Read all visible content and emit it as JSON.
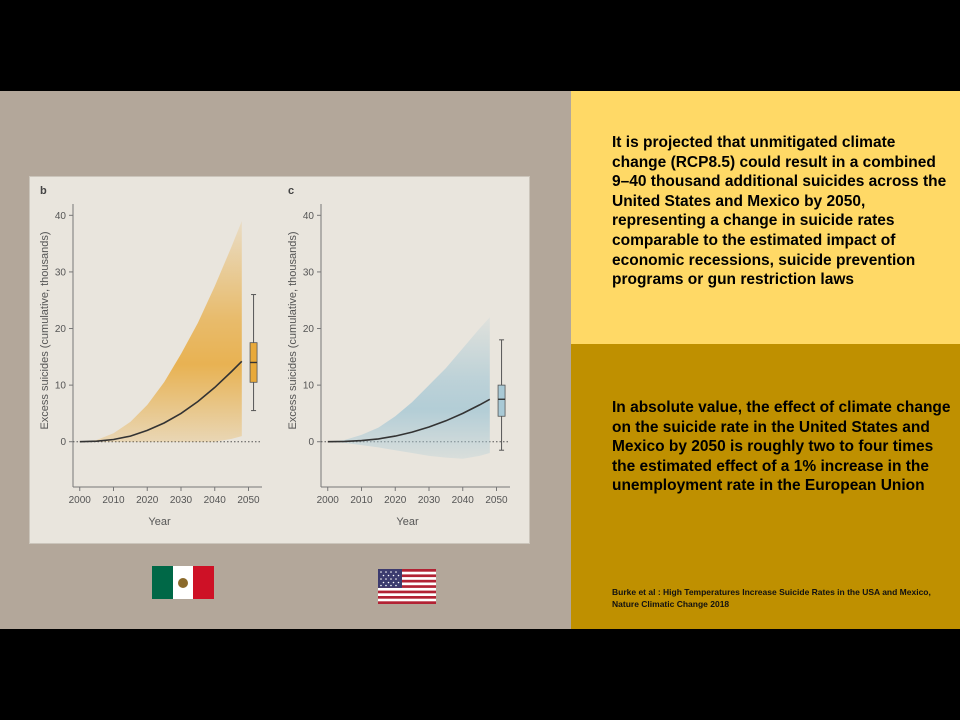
{
  "slide": {
    "text_top": " It is projected that unmitigated climate change (RCP8.5) could result in a combined 9–40 thousand additional suicides across the United States and Mexico by 2050,\nrepresenting a change in suicide rates comparable to the estimated impact of economic recessions, suicide prevention programs or gun restriction laws",
    "text_mid": "In absolute value, the effect of climate change on the suicide rate in the United States and Mexico by 2050 is roughly two to four times the estimated effect of a 1% increase in the unemployment rate in the European Union",
    "citation": "Burke et al : High Temperatures  Increase Suicide Rates in the USA and Mexico, Nature Climatic Change 2018",
    "colors": {
      "background_left": "#b3a79a",
      "panel_yellow": "#ffd966",
      "panel_gold": "#bf9000",
      "figure_bg": "#e9e5dd"
    },
    "flags": {
      "mexico": {
        "icon": "mexico-flag-icon",
        "colors": [
          "#006847",
          "#ffffff",
          "#ce1126"
        ]
      },
      "usa": {
        "icon": "usa-flag-icon",
        "colors": [
          "#b22234",
          "#ffffff",
          "#3c3b6e"
        ]
      }
    }
  },
  "chart_data": [
    {
      "type": "area",
      "panel_label": "b",
      "xlabel": "Year",
      "ylabel": "Excess suicides (cumulative, thousands)",
      "x_ticks": [
        2000,
        2010,
        2020,
        2030,
        2040,
        2050
      ],
      "y_ticks": [
        0,
        10,
        20,
        30,
        40
      ],
      "xlim": [
        1998,
        2054
      ],
      "ylim": [
        -8,
        42
      ],
      "color": "#e8a93a",
      "x": [
        2000,
        2005,
        2010,
        2015,
        2020,
        2025,
        2030,
        2035,
        2040,
        2045,
        2048
      ],
      "median": [
        0,
        0.1,
        0.4,
        1.0,
        2.0,
        3.3,
        5.0,
        7.1,
        9.6,
        12.4,
        14.2
      ],
      "band_upper": [
        0,
        0.3,
        1.5,
        3.5,
        6.5,
        10.5,
        15.5,
        21.0,
        27.5,
        34.5,
        39
      ],
      "band_lower": [
        0,
        0,
        0,
        0,
        0,
        0,
        0,
        0,
        0,
        0.5,
        1.0
      ],
      "boxplot": {
        "x": 2051.5,
        "whisker_low": 5.5,
        "q1": 10.5,
        "median": 14.0,
        "q3": 17.5,
        "whisker_high": 26
      }
    },
    {
      "type": "area",
      "panel_label": "c",
      "xlabel": "Year",
      "ylabel": "Excess suicides (cumulative, thousands)",
      "x_ticks": [
        2000,
        2010,
        2020,
        2030,
        2040,
        2050
      ],
      "y_ticks": [
        0,
        10,
        20,
        30,
        40
      ],
      "xlim": [
        1998,
        2054
      ],
      "ylim": [
        -8,
        42
      ],
      "color": "#a9c9d5",
      "x": [
        2000,
        2005,
        2010,
        2015,
        2020,
        2025,
        2030,
        2035,
        2040,
        2045,
        2048
      ],
      "median": [
        0,
        0.05,
        0.2,
        0.5,
        1.0,
        1.7,
        2.6,
        3.7,
        5.0,
        6.5,
        7.5
      ],
      "band_upper": [
        0,
        0.3,
        1.2,
        2.5,
        4.5,
        7.0,
        10.0,
        13.0,
        16.5,
        20.0,
        22
      ],
      "band_lower": [
        0,
        -0.2,
        -0.6,
        -1.0,
        -1.5,
        -2.0,
        -2.5,
        -2.8,
        -3.0,
        -2.5,
        -2.0
      ],
      "boxplot": {
        "x": 2051.5,
        "whisker_low": -1.5,
        "q1": 4.5,
        "median": 7.5,
        "q3": 10.0,
        "whisker_high": 18
      }
    }
  ]
}
